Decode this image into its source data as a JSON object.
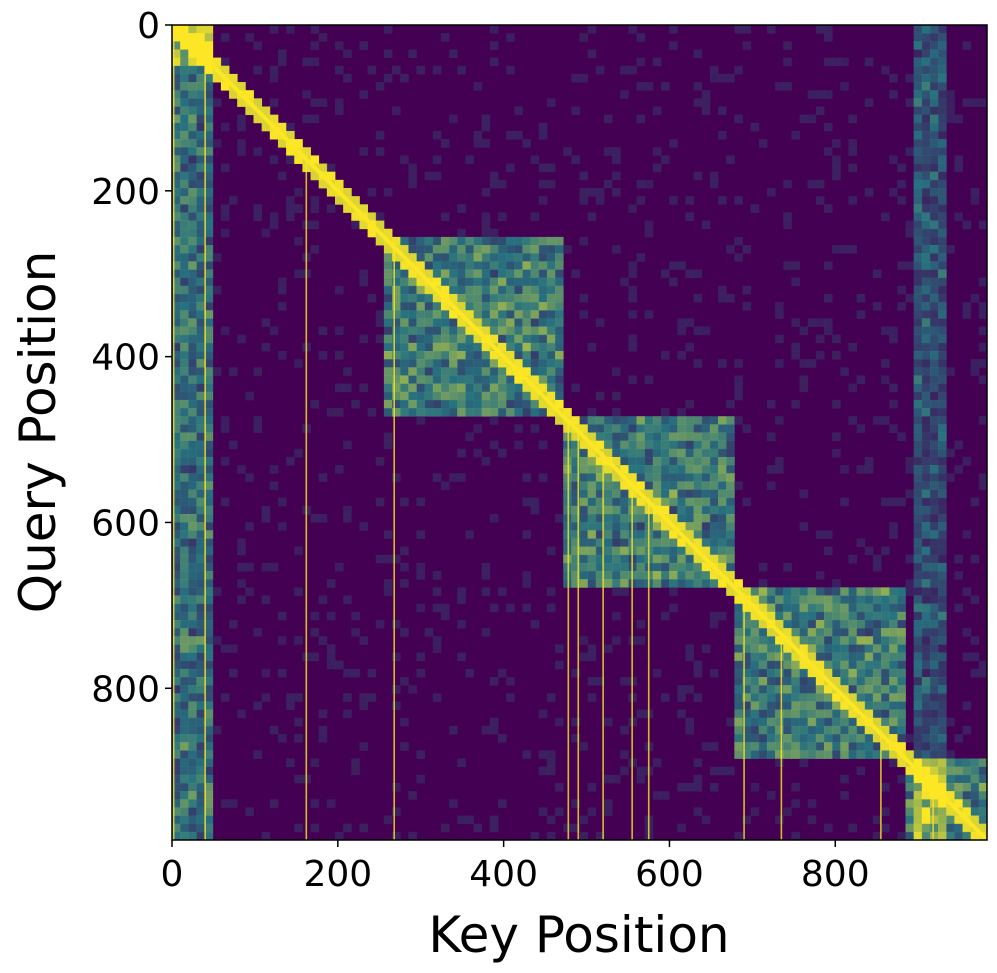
{
  "chart_data": {
    "type": "heatmap",
    "title": "",
    "xlabel": "Key Position",
    "ylabel": "Query Position",
    "xlim": [
      0,
      983
    ],
    "ylim": [
      983,
      0
    ],
    "x_ticks": [
      0,
      200,
      400,
      600,
      800
    ],
    "y_ticks": [
      0,
      200,
      400,
      600,
      800
    ],
    "colormap": "viridis",
    "grid": false,
    "legend": "none",
    "colors": {
      "low": "#440154",
      "mid": "#21918c",
      "high": "#fde725"
    },
    "diagonal_blocks": [
      {
        "start": 0,
        "end": 50
      },
      {
        "start": 255,
        "end": 470
      },
      {
        "start": 470,
        "end": 680
      },
      {
        "start": 680,
        "end": 880
      },
      {
        "start": 880,
        "end": 983
      }
    ],
    "attention_sink_columns": [
      2,
      40,
      162,
      268,
      478,
      490,
      520,
      555,
      575,
      690,
      735,
      855,
      918
    ]
  }
}
